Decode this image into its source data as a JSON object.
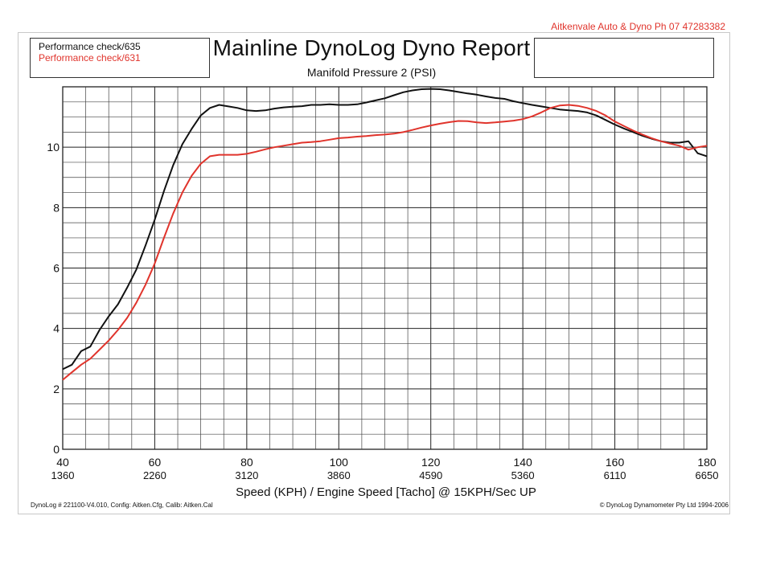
{
  "header": {
    "company": "Aitkenvale Auto & Dyno  Ph 07 47283382",
    "title": "Mainline DynoLog Dyno Report",
    "subtitle": "Manifold Pressure 2 (PSI)"
  },
  "legend": {
    "entries": [
      {
        "label": "Performance check/635",
        "color": "#111111"
      },
      {
        "label": "Performance check/631",
        "color": "#e0342c"
      }
    ]
  },
  "footer": {
    "left": "DynoLog # 221100-V4.010, Config: Aitken.Cfg, Calib: Aitken.Cal",
    "right": "© DynoLog Dynamometer Pty Ltd 1994-2006"
  },
  "colors": {
    "series1": "#111111",
    "series2": "#e0342c",
    "grid": "#333333"
  },
  "chart_data": {
    "type": "line",
    "xlabel": "Speed (KPH) / Engine Speed [Tacho] @ 15KPH/Sec UP",
    "ylabel": "",
    "xlim": [
      40,
      180
    ],
    "ylim": [
      0,
      12
    ],
    "grid": true,
    "x_ticks": [
      {
        "value": 40,
        "label": "40",
        "sublabel": "1360"
      },
      {
        "value": 60,
        "label": "60",
        "sublabel": "2260"
      },
      {
        "value": 80,
        "label": "80",
        "sublabel": "3120"
      },
      {
        "value": 100,
        "label": "100",
        "sublabel": "3860"
      },
      {
        "value": 120,
        "label": "120",
        "sublabel": "4590"
      },
      {
        "value": 140,
        "label": "140",
        "sublabel": "5360"
      },
      {
        "value": 160,
        "label": "160",
        "sublabel": "6110"
      },
      {
        "value": 180,
        "label": "180",
        "sublabel": "6650"
      }
    ],
    "y_ticks": [
      0,
      2,
      4,
      6,
      8,
      10
    ],
    "series": [
      {
        "name": "Performance check/635",
        "color": "#111111",
        "points": [
          [
            40,
            2.65
          ],
          [
            42,
            2.8
          ],
          [
            44,
            3.25
          ],
          [
            46,
            3.4
          ],
          [
            48,
            3.95
          ],
          [
            50,
            4.4
          ],
          [
            52,
            4.8
          ],
          [
            54,
            5.35
          ],
          [
            56,
            5.95
          ],
          [
            58,
            6.75
          ],
          [
            60,
            7.6
          ],
          [
            62,
            8.55
          ],
          [
            64,
            9.4
          ],
          [
            66,
            10.1
          ],
          [
            68,
            10.6
          ],
          [
            70,
            11.05
          ],
          [
            72,
            11.3
          ],
          [
            74,
            11.4
          ],
          [
            76,
            11.35
          ],
          [
            78,
            11.3
          ],
          [
            80,
            11.22
          ],
          [
            82,
            11.2
          ],
          [
            84,
            11.22
          ],
          [
            86,
            11.28
          ],
          [
            88,
            11.32
          ],
          [
            90,
            11.34
          ],
          [
            92,
            11.36
          ],
          [
            94,
            11.4
          ],
          [
            96,
            11.4
          ],
          [
            98,
            11.42
          ],
          [
            100,
            11.4
          ],
          [
            102,
            11.4
          ],
          [
            104,
            11.42
          ],
          [
            106,
            11.48
          ],
          [
            108,
            11.55
          ],
          [
            110,
            11.62
          ],
          [
            112,
            11.72
          ],
          [
            114,
            11.82
          ],
          [
            116,
            11.88
          ],
          [
            118,
            11.92
          ],
          [
            120,
            11.93
          ],
          [
            122,
            11.92
          ],
          [
            124,
            11.88
          ],
          [
            126,
            11.83
          ],
          [
            128,
            11.78
          ],
          [
            130,
            11.74
          ],
          [
            132,
            11.68
          ],
          [
            134,
            11.63
          ],
          [
            136,
            11.6
          ],
          [
            138,
            11.52
          ],
          [
            140,
            11.46
          ],
          [
            142,
            11.4
          ],
          [
            144,
            11.35
          ],
          [
            146,
            11.3
          ],
          [
            148,
            11.25
          ],
          [
            150,
            11.22
          ],
          [
            152,
            11.2
          ],
          [
            154,
            11.15
          ],
          [
            156,
            11.05
          ],
          [
            158,
            10.9
          ],
          [
            160,
            10.75
          ],
          [
            162,
            10.62
          ],
          [
            164,
            10.5
          ],
          [
            166,
            10.38
          ],
          [
            168,
            10.28
          ],
          [
            170,
            10.2
          ],
          [
            172,
            10.15
          ],
          [
            174,
            10.15
          ],
          [
            176,
            10.2
          ],
          [
            178,
            9.8
          ],
          [
            180,
            9.7
          ]
        ]
      },
      {
        "name": "Performance check/631",
        "color": "#e0342c",
        "points": [
          [
            40,
            2.3
          ],
          [
            42,
            2.55
          ],
          [
            44,
            2.8
          ],
          [
            46,
            3.0
          ],
          [
            48,
            3.3
          ],
          [
            50,
            3.6
          ],
          [
            52,
            3.95
          ],
          [
            54,
            4.35
          ],
          [
            56,
            4.85
          ],
          [
            58,
            5.45
          ],
          [
            60,
            6.15
          ],
          [
            62,
            7.0
          ],
          [
            64,
            7.8
          ],
          [
            66,
            8.5
          ],
          [
            68,
            9.05
          ],
          [
            70,
            9.45
          ],
          [
            72,
            9.7
          ],
          [
            74,
            9.75
          ],
          [
            76,
            9.75
          ],
          [
            78,
            9.75
          ],
          [
            80,
            9.78
          ],
          [
            82,
            9.85
          ],
          [
            84,
            9.93
          ],
          [
            86,
            10.0
          ],
          [
            88,
            10.05
          ],
          [
            90,
            10.1
          ],
          [
            92,
            10.15
          ],
          [
            94,
            10.17
          ],
          [
            96,
            10.2
          ],
          [
            98,
            10.25
          ],
          [
            100,
            10.3
          ],
          [
            102,
            10.32
          ],
          [
            104,
            10.35
          ],
          [
            106,
            10.37
          ],
          [
            108,
            10.4
          ],
          [
            110,
            10.42
          ],
          [
            112,
            10.45
          ],
          [
            114,
            10.5
          ],
          [
            116,
            10.57
          ],
          [
            118,
            10.65
          ],
          [
            120,
            10.72
          ],
          [
            122,
            10.78
          ],
          [
            124,
            10.83
          ],
          [
            126,
            10.87
          ],
          [
            128,
            10.86
          ],
          [
            130,
            10.82
          ],
          [
            132,
            10.8
          ],
          [
            134,
            10.82
          ],
          [
            136,
            10.85
          ],
          [
            138,
            10.88
          ],
          [
            140,
            10.93
          ],
          [
            142,
            11.02
          ],
          [
            144,
            11.15
          ],
          [
            146,
            11.3
          ],
          [
            148,
            11.38
          ],
          [
            150,
            11.4
          ],
          [
            152,
            11.37
          ],
          [
            154,
            11.3
          ],
          [
            156,
            11.2
          ],
          [
            158,
            11.05
          ],
          [
            160,
            10.85
          ],
          [
            162,
            10.7
          ],
          [
            164,
            10.55
          ],
          [
            166,
            10.42
          ],
          [
            168,
            10.3
          ],
          [
            170,
            10.2
          ],
          [
            172,
            10.12
          ],
          [
            174,
            10.05
          ],
          [
            176,
            9.92
          ],
          [
            178,
            10.0
          ],
          [
            180,
            10.05
          ]
        ]
      }
    ]
  }
}
